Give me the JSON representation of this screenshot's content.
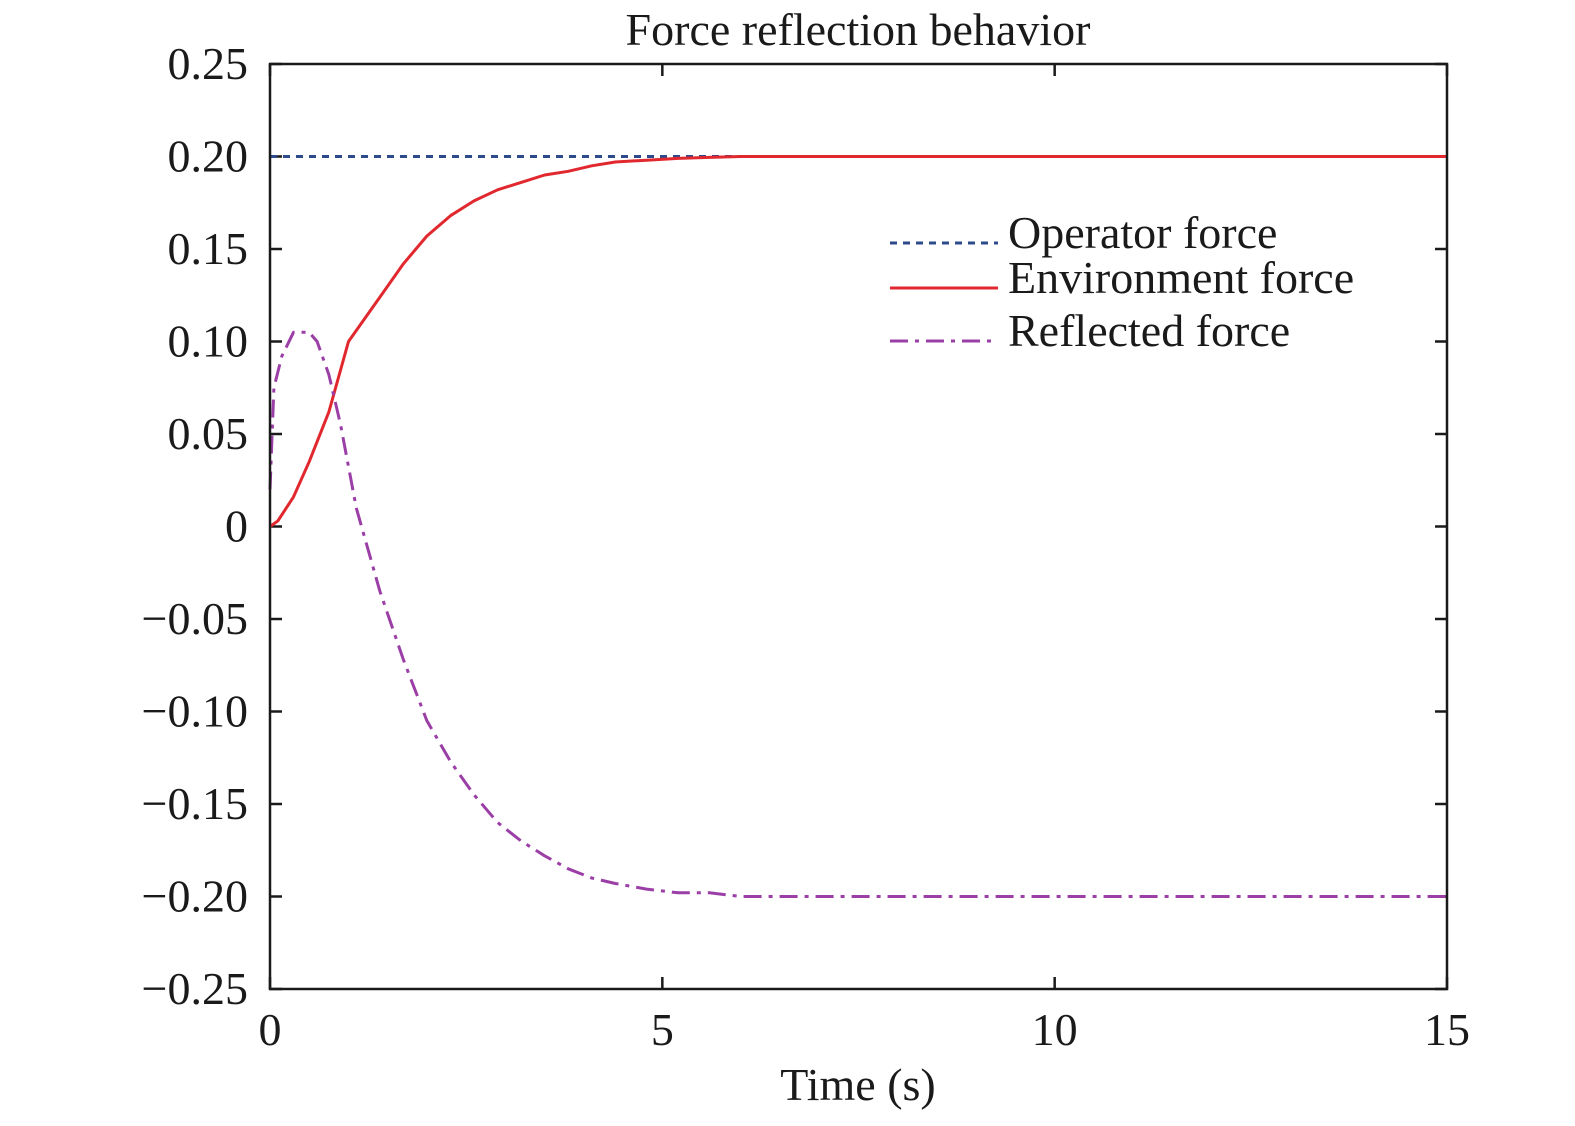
{
  "chart_data": {
    "type": "line",
    "title": "Force reflection behavior",
    "xlabel": "Time (s)",
    "ylabel": "",
    "xlim": [
      0,
      15
    ],
    "ylim": [
      -0.25,
      0.25
    ],
    "x_ticks": [
      0,
      5,
      10,
      15
    ],
    "x_tick_labels": [
      "0",
      "5",
      "10",
      "15"
    ],
    "y_ticks": [
      0.25,
      0.2,
      0.15,
      0.1,
      0.05,
      0,
      -0.05,
      -0.1,
      -0.15,
      -0.2,
      -0.25
    ],
    "y_tick_labels": [
      "0.25",
      "0.20",
      "0.15",
      "0.10",
      "0.05",
      "0",
      "−0.05",
      "−0.10",
      "−0.15",
      "−0.20",
      "−0.25"
    ],
    "grid": false,
    "legend_position": "top-right",
    "series": [
      {
        "name": "Operator force",
        "color": "#2c4a8c",
        "style": "dotted",
        "x": [
          0,
          15
        ],
        "y": [
          0.2,
          0.2
        ]
      },
      {
        "name": "Environment force",
        "color": "#e0282e",
        "style": "solid",
        "x": [
          0,
          0.1,
          0.3,
          0.5,
          0.75,
          1.0,
          1.4,
          1.7,
          2.0,
          2.3,
          2.6,
          2.9,
          3.2,
          3.5,
          3.8,
          4.1,
          4.4,
          4.8,
          5.2,
          5.6,
          6.0,
          7.0,
          8.0,
          10.0,
          12.0,
          15.0
        ],
        "y": [
          0,
          0.003,
          0.016,
          0.035,
          0.062,
          0.1,
          0.124,
          0.142,
          0.157,
          0.168,
          0.176,
          0.182,
          0.186,
          0.19,
          0.192,
          0.195,
          0.197,
          0.198,
          0.199,
          0.1995,
          0.2,
          0.2,
          0.2,
          0.2,
          0.2,
          0.2
        ]
      },
      {
        "name": "Reflected force",
        "color": "#9b3fa6",
        "style": "dashdot",
        "x": [
          0,
          0.05,
          0.15,
          0.3,
          0.5,
          0.6,
          0.75,
          0.9,
          1.1,
          1.4,
          1.7,
          2.0,
          2.3,
          2.6,
          2.9,
          3.2,
          3.5,
          3.8,
          4.1,
          4.4,
          4.8,
          5.2,
          5.6,
          6.0,
          6.6,
          7.0,
          8.0,
          10.0,
          12.0,
          15.0
        ],
        "y": [
          0.02,
          0.075,
          0.092,
          0.105,
          0.105,
          0.1,
          0.082,
          0.055,
          0.01,
          -0.035,
          -0.072,
          -0.105,
          -0.127,
          -0.145,
          -0.16,
          -0.17,
          -0.178,
          -0.185,
          -0.19,
          -0.193,
          -0.196,
          -0.198,
          -0.198,
          -0.2,
          -0.2,
          -0.2,
          -0.2,
          -0.2,
          -0.2,
          -0.2
        ]
      }
    ]
  }
}
